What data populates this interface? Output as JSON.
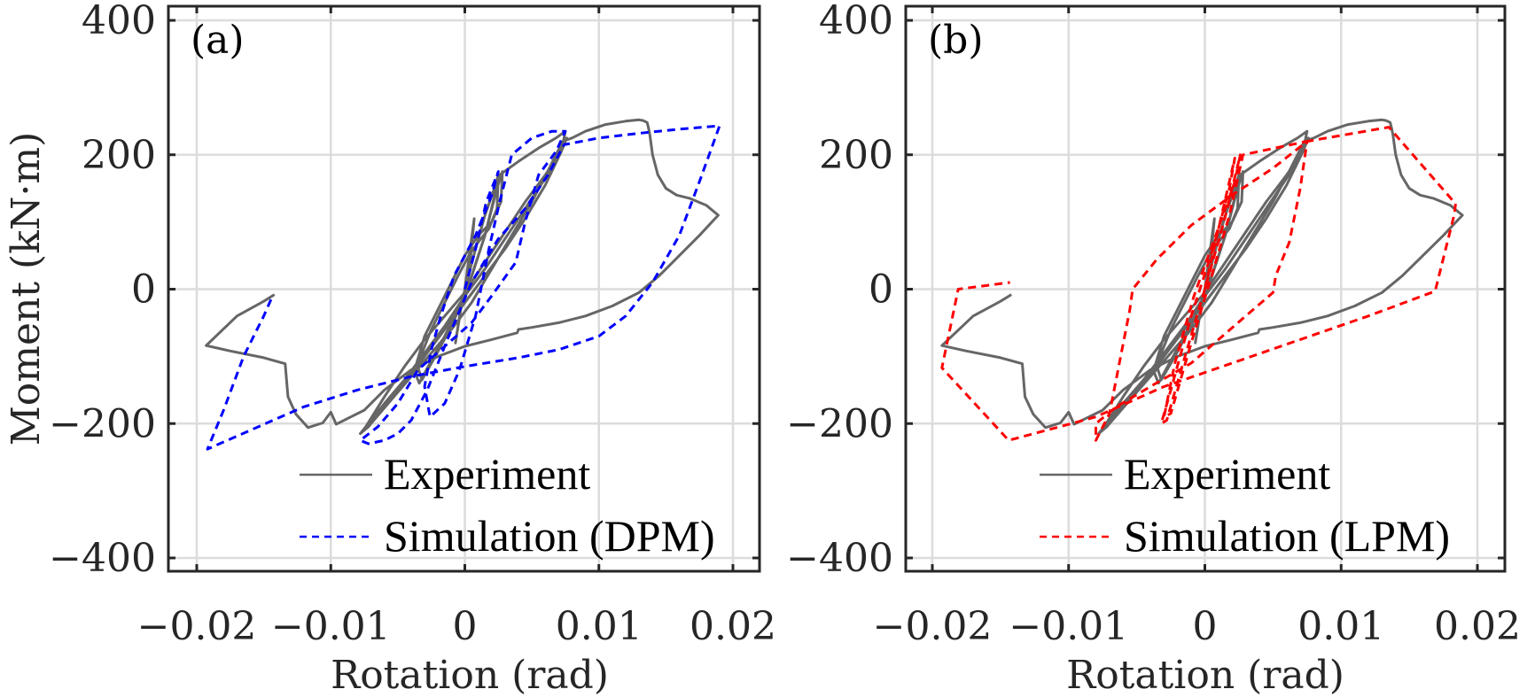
{
  "chart_data": [
    {
      "type": "line",
      "panel_label": "(a)",
      "xlabel": "Rotation (rad)",
      "ylabel": "Moment (kN·m)",
      "xlim": [
        -0.022,
        0.0222
      ],
      "ylim": [
        -420,
        410
      ],
      "xticks": [
        -0.02,
        -0.01,
        0,
        0.01,
        0.02
      ],
      "xtick_labels": [
        "−0.02",
        "−0.01",
        "0",
        "0.01",
        "0.02"
      ],
      "yticks": [
        -400,
        -200,
        0,
        200,
        400
      ],
      "ytick_labels": [
        "−400",
        "−200",
        "0",
        "200",
        "400"
      ],
      "grid": true,
      "legend_position": "bottom-right",
      "series": [
        {
          "name": "Experiment",
          "color": "#666666",
          "style": "solid",
          "x": [
            0,
            0.0004,
            0.0007,
            0.0004,
            0,
            -0.0004,
            -0.0007,
            -0.0003,
            0,
            0.0008,
            0.0015,
            0.0022,
            0.0025,
            0.0024,
            0.0018,
            0.001,
            0.0003,
            -0.0005,
            -0.0015,
            -0.0025,
            -0.0033,
            -0.0037,
            -0.0034,
            -0.0026,
            -0.0015,
            -0.0005,
            0.0005,
            0.0015,
            0.0024,
            0.0028,
            0.0027,
            0.002,
            0.001,
            0,
            -0.001,
            -0.002,
            -0.003,
            -0.0036,
            -0.0032,
            -0.0022,
            -0.001,
            0.0002,
            0.0015,
            0.0026,
            0.004,
            0.0055,
            0.0068,
            0.0075,
            0.0072,
            0.006,
            0.0045,
            0.003,
            0.0015,
            0,
            -0.0015,
            -0.003,
            -0.0045,
            -0.006,
            -0.0072,
            -0.0078,
            -0.0074,
            -0.006,
            -0.0045,
            -0.003,
            -0.0015,
            0,
            0.0015,
            0.003,
            0.0045,
            0.006,
            0.007,
            0.0076,
            0.0072,
            0.006,
            0.0045,
            0.003,
            0.0015,
            0,
            -0.0015,
            -0.003,
            -0.0045,
            -0.006,
            -0.0072,
            -0.0078,
            -0.007,
            -0.0055,
            -0.004,
            -0.0025,
            -0.001,
            0.0005,
            0.002,
            0.0035,
            0.005,
            0.0063,
            0.0073,
            0.008,
            0.009,
            0.0105,
            0.012,
            0.013,
            0.0133,
            0.0136,
            0.0137,
            0.0138,
            0.014,
            0.0144,
            0.015,
            0.0158,
            0.0168,
            0.018,
            0.0189,
            0.0175,
            0.016,
            0.0145,
            0.013,
            0.011,
            0.009,
            0.007,
            0.005,
            0.004,
            0.0039,
            0.002,
            0,
            -0.002,
            -0.004,
            -0.006,
            -0.0075,
            -0.0085,
            -0.0096,
            -0.01,
            -0.0106,
            -0.0117,
            -0.0126,
            -0.0132,
            -0.0134,
            -0.015,
            -0.0175,
            -0.0193,
            -0.017,
            -0.015,
            -0.0142
          ],
          "y": [
            0,
            60,
            105,
            40,
            0,
            -40,
            -80,
            -30,
            0,
            60,
            110,
            150,
            170,
            120,
            90,
            70,
            50,
            20,
            -20,
            -60,
            -100,
            -125,
            -140,
            -110,
            -70,
            -30,
            20,
            80,
            150,
            175,
            130,
            100,
            80,
            50,
            10,
            -30,
            -70,
            -110,
            -135,
            -100,
            -55,
            0,
            80,
            170,
            190,
            210,
            225,
            235,
            205,
            165,
            120,
            75,
            30,
            -10,
            -55,
            -95,
            -135,
            -170,
            -200,
            -215,
            -205,
            -160,
            -115,
            -75,
            -40,
            -5,
            40,
            85,
            130,
            170,
            200,
            225,
            205,
            155,
            105,
            60,
            20,
            -20,
            -60,
            -100,
            -140,
            -175,
            -205,
            -215,
            -200,
            -165,
            -130,
            -95,
            -60,
            -20,
            30,
            80,
            130,
            180,
            220,
            225,
            235,
            245,
            250,
            252,
            251,
            248,
            240,
            230,
            200,
            170,
            150,
            140,
            135,
            125,
            110,
            80,
            50,
            20,
            -5,
            -25,
            -40,
            -50,
            -57,
            -60,
            -65,
            -75,
            -85,
            -100,
            -120,
            -150,
            -180,
            -190,
            -201,
            -183,
            -199,
            -206,
            -186,
            -160,
            -111,
            -102,
            -92,
            -84,
            -40,
            -18,
            -8
          ]
        },
        {
          "name": "Simulation (DPM)",
          "color": "#0000ff",
          "style": "dashed",
          "x": [
            0,
            0.0008,
            0.0016,
            0.0025,
            0.002,
            0.0008,
            -0.0008,
            -0.0018,
            -0.0025,
            -0.003,
            -0.0026,
            -0.0015,
            -0.0004,
            0.0008,
            0.0018,
            0.0026,
            0.0035,
            0.005,
            0.0065,
            0.0075,
            0.0068,
            0.0055,
            0.0045,
            0.0038,
            0.002,
            0.0005,
            -0.0015,
            -0.0035,
            -0.005,
            -0.0065,
            -0.0078,
            -0.0072,
            -0.006,
            -0.005,
            -0.004,
            -0.0028,
            -0.0012,
            0.0005,
            0.0025,
            0.0045,
            0.0062,
            0.0074,
            0.01,
            0.013,
            0.016,
            0.019,
            0.0175,
            0.016,
            0.014,
            0.012,
            0.01,
            0.007,
            0.004,
            0,
            -0.004,
            -0.008,
            -0.012,
            -0.016,
            -0.0192,
            -0.018,
            -0.0165,
            -0.015,
            -0.0143
          ],
          "y": [
            0,
            60,
            130,
            175,
            140,
            80,
            20,
            -40,
            -90,
            -145,
            -190,
            -170,
            -120,
            -40,
            60,
            130,
            200,
            225,
            235,
            235,
            205,
            170,
            100,
            40,
            -10,
            -50,
            -85,
            -120,
            -170,
            -205,
            -225,
            -230,
            -225,
            -215,
            -195,
            -150,
            -70,
            10,
            75,
            120,
            170,
            215,
            225,
            232,
            238,
            243,
            160,
            80,
            10,
            -40,
            -70,
            -90,
            -102,
            -115,
            -130,
            -150,
            -175,
            -210,
            -238,
            -180,
            -100,
            -40,
            -8
          ]
        }
      ]
    },
    {
      "type": "line",
      "panel_label": "(b)",
      "xlabel": "Rotation (rad)",
      "ylabel": "",
      "xlim": [
        -0.022,
        0.022
      ],
      "ylim": [
        -420,
        410
      ],
      "xticks": [
        -0.02,
        -0.01,
        0,
        0.01,
        0.02
      ],
      "xtick_labels": [
        "−0.02",
        "−0.01",
        "0",
        "0.01",
        "0.02"
      ],
      "yticks": [
        -400,
        -200,
        0,
        200,
        400
      ],
      "ytick_labels": [
        "−400",
        "−200",
        "0",
        "200",
        "400"
      ],
      "grid": true,
      "legend_position": "bottom-right",
      "series": [
        {
          "name": "Experiment",
          "color": "#666666",
          "style": "solid",
          "same_as": "(a) Experiment"
        },
        {
          "name": "Simulation (LPM)",
          "color": "#ff0000",
          "style": "dashed",
          "x": [
            0,
            0.001,
            0.0022,
            0.0018,
            0.0006,
            -0.001,
            -0.0025,
            -0.0032,
            -0.0028,
            -0.0016,
            0,
            0.0014,
            0.0026,
            0.0022,
            0.0008,
            -0.0008,
            -0.0022,
            -0.003,
            -0.0025,
            -0.001,
            0.0005,
            0.0018,
            0.0028,
            0.0075,
            0.007,
            0.0062,
            0.0052,
            0.005,
            0.003,
            0.001,
            -0.001,
            -0.004,
            -0.0065,
            -0.008,
            -0.008,
            -0.007,
            -0.0055,
            -0.0053,
            -0.0035,
            -0.001,
            0.002,
            0.005,
            0.0075,
            0.0135,
            0.0184,
            0.0183,
            0.0169,
            0.012,
            0.007,
            0.002,
            -0.003,
            -0.008,
            -0.0098,
            -0.0144,
            -0.0193,
            -0.0181,
            -0.0143
          ],
          "y": [
            0,
            90,
            195,
            150,
            60,
            -40,
            -150,
            -200,
            -195,
            -110,
            0,
            100,
            200,
            160,
            80,
            -10,
            -110,
            -190,
            -185,
            -80,
            20,
            110,
            200,
            220,
            150,
            70,
            20,
            -5,
            -40,
            -75,
            -110,
            -145,
            -175,
            -200,
            -225,
            -185,
            -30,
            0,
            45,
            95,
            140,
            180,
            220,
            241,
            127,
            111,
            -3,
            -40,
            -75,
            -110,
            -145,
            -190,
            -200,
            -225,
            -117,
            0,
            10
          ]
        }
      ]
    }
  ],
  "legend": {
    "a": [
      {
        "label": "Experiment",
        "color": "#666666",
        "style": "solid"
      },
      {
        "label": "Simulation (DPM)",
        "color": "#0000ff",
        "style": "dashed"
      }
    ],
    "b": [
      {
        "label": "Experiment",
        "color": "#666666",
        "style": "solid"
      },
      {
        "label": "Simulation (LPM)",
        "color": "#ff0000",
        "style": "dashed"
      }
    ]
  }
}
